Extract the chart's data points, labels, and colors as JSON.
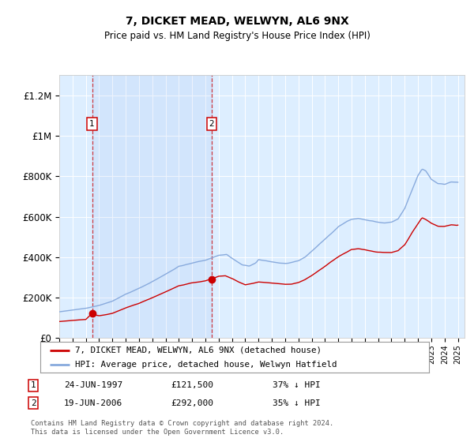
{
  "title": "7, DICKET MEAD, WELWYN, AL6 9NX",
  "subtitle": "Price paid vs. HM Land Registry's House Price Index (HPI)",
  "bg_color": "#ddeeff",
  "hpi_color": "#88aadd",
  "price_color": "#cc0000",
  "ylim": [
    0,
    1300000
  ],
  "yticks": [
    0,
    200000,
    400000,
    600000,
    800000,
    1000000,
    1200000
  ],
  "ytick_labels": [
    "£0",
    "£200K",
    "£400K",
    "£600K",
    "£800K",
    "£1M",
    "£1.2M"
  ],
  "sale1_year": 1997.47,
  "sale1_price": 121500,
  "sale1_label": "1",
  "sale2_year": 2006.47,
  "sale2_price": 292000,
  "sale2_label": "2",
  "legend_red": "7, DICKET MEAD, WELWYN, AL6 9NX (detached house)",
  "legend_blue": "HPI: Average price, detached house, Welwyn Hatfield",
  "table_row1": [
    "1",
    "24-JUN-1997",
    "£121,500",
    "37% ↓ HPI"
  ],
  "table_row2": [
    "2",
    "19-JUN-2006",
    "£292,000",
    "35% ↓ HPI"
  ],
  "footnote": "Contains HM Land Registry data © Crown copyright and database right 2024.\nThis data is licensed under the Open Government Licence v3.0.",
  "xmin": 1995.0,
  "xmax": 2025.5
}
